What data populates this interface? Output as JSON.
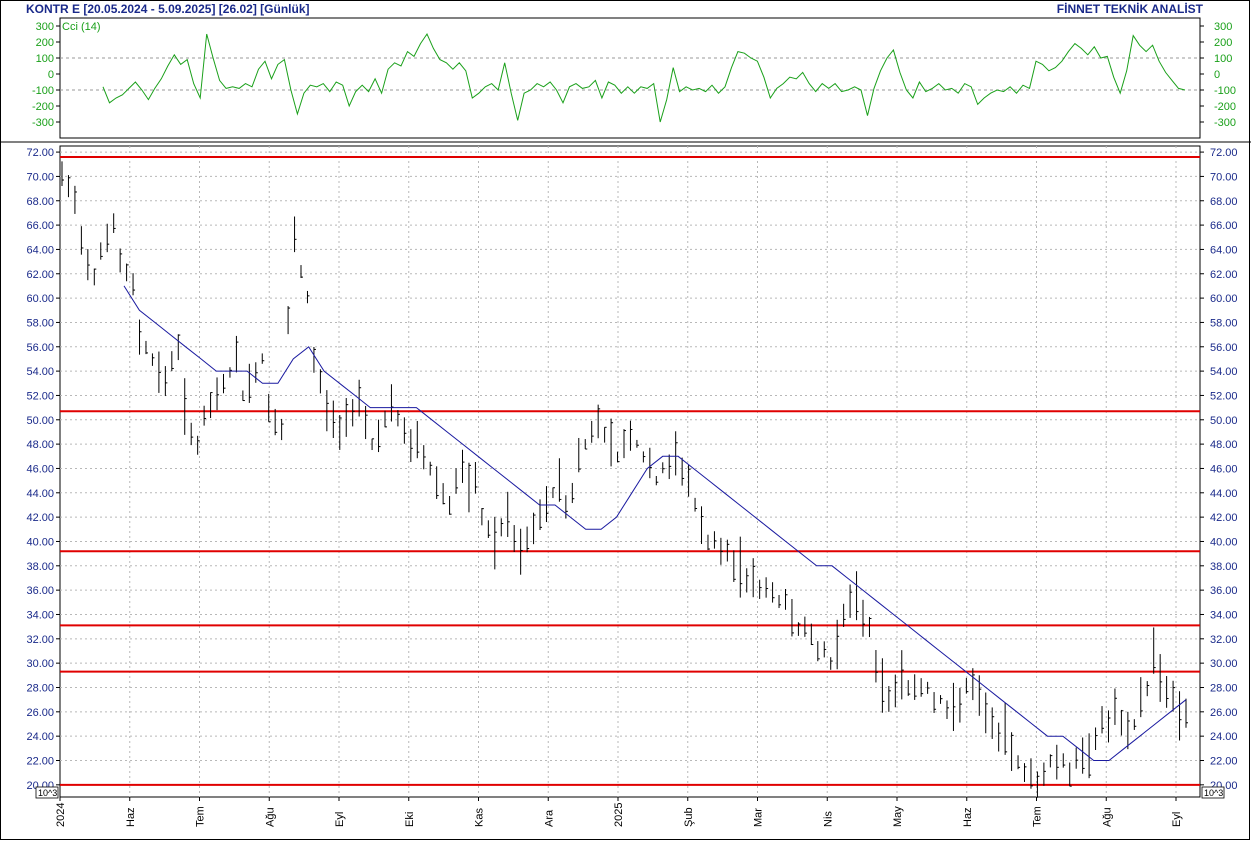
{
  "header": {
    "symbol": "KONTR E",
    "range": "[20.05.2024 - 5.09.2025]",
    "last": "[26.02]",
    "period": "[Günlük]",
    "brand": "FİNNET TEKNİK ANALİST"
  },
  "colors": {
    "price_bars": "#000000",
    "moving_average": "#1a1aa0",
    "horizontal_lines": "#e00000",
    "cci": "#1aa01a",
    "axis_text_price": "#1a2a8a",
    "axis_text_cci": "#1aa01a"
  },
  "chart_data": [
    {
      "type": "line",
      "name": "cci-panel",
      "series": [
        {
          "name": "Cci (14)",
          "values": [
            -80,
            -180,
            -150,
            -130,
            -90,
            -50,
            -100,
            -160,
            -90,
            -30,
            50,
            120,
            60,
            90,
            -60,
            -150,
            250,
            100,
            -40,
            -90,
            -80,
            -90,
            -60,
            -80,
            30,
            80,
            -30,
            60,
            90,
            -100,
            -250,
            -120,
            -70,
            -80,
            -60,
            -110,
            -50,
            -70,
            -200,
            -110,
            -70,
            -110,
            -30,
            -120,
            30,
            70,
            50,
            140,
            110,
            190,
            250,
            160,
            90,
            70,
            30,
            70,
            20,
            -150,
            -120,
            -80,
            -60,
            -100,
            70,
            -120,
            -290,
            -120,
            -100,
            -60,
            -80,
            -50,
            -100,
            -180,
            -80,
            -60,
            -90,
            -80,
            -40,
            -150,
            -50,
            -70,
            -120,
            -80,
            -120,
            -80,
            -90,
            -60,
            -300,
            -160,
            40,
            -110,
            -80,
            -100,
            -90,
            -110,
            -70,
            -120,
            -80,
            40,
            140,
            130,
            100,
            80,
            -20,
            -150,
            -90,
            -60,
            -20,
            -30,
            10,
            -60,
            -110,
            -60,
            -90,
            -60,
            -110,
            -100,
            -80,
            -100,
            -260,
            -90,
            20,
            100,
            150,
            10,
            -100,
            -150,
            -50,
            -110,
            -90,
            -60,
            -100,
            -90,
            -120,
            -60,
            -80,
            -190,
            -150,
            -120,
            -100,
            -110,
            -80,
            -120,
            -70,
            -90,
            80,
            60,
            20,
            40,
            80,
            140,
            190,
            160,
            120,
            170,
            100,
            110,
            -20,
            -120,
            20,
            240,
            180,
            140,
            180,
            80,
            10,
            -40,
            -90,
            -100
          ]
        }
      ],
      "ylim": [
        -400,
        350
      ],
      "y_ticks": [
        300,
        200,
        100,
        0,
        -100,
        -200,
        -300
      ],
      "y_tick_labels": [
        "300",
        "200",
        "100",
        "0",
        "-100",
        "-200",
        "-300"
      ],
      "dashed_levels": [
        100,
        -100
      ]
    },
    {
      "type": "bar",
      "name": "price-panel",
      "ylim": [
        19.0,
        72.5
      ],
      "y_ticks": [
        20,
        22,
        24,
        26,
        28,
        30,
        32,
        34,
        36,
        38,
        40,
        42,
        44,
        46,
        48,
        50,
        52,
        54,
        56,
        58,
        60,
        62,
        64,
        66,
        68,
        70,
        72
      ],
      "y_tick_labels": [
        "20.00",
        "22.00",
        "24.00",
        "26.00",
        "28.00",
        "30.00",
        "32.00",
        "34.00",
        "36.00",
        "38.00",
        "40.00",
        "42.00",
        "44.00",
        "46.00",
        "48.00",
        "50.00",
        "52.00",
        "54.00",
        "56.00",
        "58.00",
        "60.00",
        "62.00",
        "64.00",
        "66.00",
        "68.00",
        "70.00",
        "72.00"
      ],
      "scale_note": "10^3",
      "x_ticks": [
        "2024",
        "Haz",
        "Tem",
        "Ağu",
        "Eyl",
        "Eki",
        "Kas",
        "Ara",
        "2025",
        "Şub",
        "Mar",
        "Nis",
        "May",
        "Haz",
        "Tem",
        "Ağu",
        "Eyl"
      ],
      "horizontal_lines": [
        71.6,
        50.7,
        39.2,
        33.1,
        29.3,
        20.0
      ],
      "series": [
        {
          "name": "price",
          "values": [
            70,
            69,
            68,
            65,
            63,
            62,
            64,
            65,
            66,
            63,
            62,
            61,
            57,
            56,
            55,
            54,
            53,
            55,
            56,
            51,
            49,
            48,
            50,
            51,
            52,
            53,
            54,
            55,
            52,
            53,
            54,
            55,
            51,
            50,
            49,
            58,
            65,
            62,
            60,
            55,
            53,
            51,
            50,
            49,
            50,
            51,
            52,
            50,
            48,
            49,
            50,
            51,
            50,
            49,
            48,
            48,
            47,
            46,
            45,
            44,
            43,
            45,
            46,
            44,
            45,
            42,
            41,
            40,
            41,
            42,
            40,
            39,
            40,
            41,
            42,
            43,
            44,
            45,
            43,
            44,
            47,
            48,
            49,
            50,
            49,
            48,
            47,
            48,
            49,
            48,
            47,
            46,
            45,
            46,
            46,
            47,
            46,
            45,
            43,
            41,
            40,
            40,
            39,
            39,
            38,
            38,
            37,
            37,
            36,
            36,
            36,
            35,
            35,
            34,
            33,
            33,
            32,
            31,
            31,
            30,
            32,
            34,
            35,
            35,
            34,
            33,
            30,
            28,
            27,
            28,
            29,
            28,
            28,
            28,
            28,
            27,
            27,
            26,
            26,
            27,
            28,
            28,
            27,
            26,
            25,
            24,
            24,
            23,
            22,
            21,
            21,
            20,
            21,
            22,
            22,
            22,
            21,
            22,
            22,
            23,
            24,
            25,
            25,
            26,
            25,
            24,
            25,
            27,
            28,
            31,
            29,
            28,
            27,
            26,
            26
          ]
        },
        {
          "name": "moving-average",
          "values": [
            61,
            59,
            58,
            57,
            56,
            55,
            54,
            54,
            54,
            53,
            53,
            55,
            56,
            54,
            53,
            52,
            51,
            51,
            51,
            51,
            50,
            49,
            48,
            47,
            46,
            45,
            44,
            43,
            43,
            42,
            41,
            41,
            42,
            44,
            46,
            47,
            47,
            46,
            45,
            44,
            43,
            42,
            41,
            40,
            39,
            38,
            38,
            37,
            36,
            35,
            34,
            33,
            32,
            31,
            30,
            29,
            28,
            27,
            26,
            25,
            24,
            24,
            23,
            22,
            22,
            23,
            24,
            25,
            26,
            27
          ]
        }
      ]
    }
  ]
}
